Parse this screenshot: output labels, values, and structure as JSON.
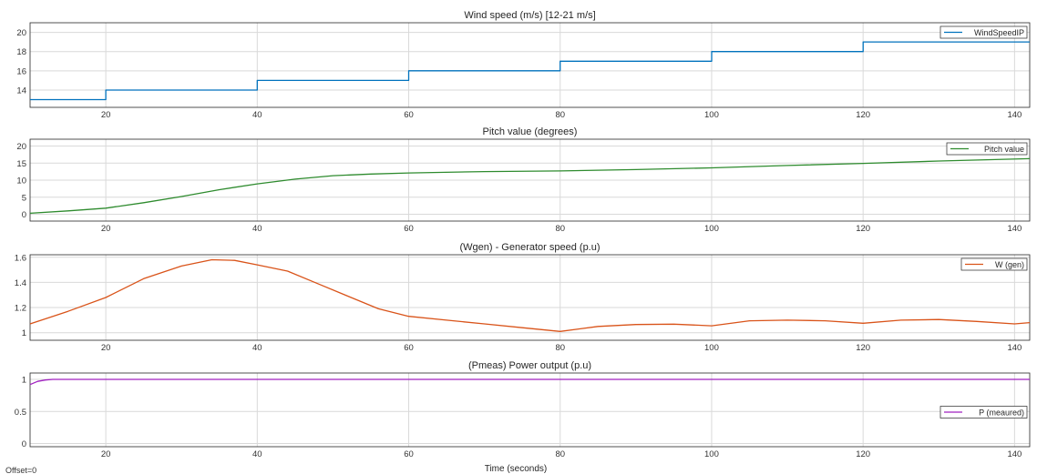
{
  "chart_data": [
    {
      "type": "line",
      "title": "Wind speed (m/s) [12-21 m/s]",
      "xlim": [
        10,
        142
      ],
      "ylim": [
        12.2,
        21
      ],
      "xticks": [
        20,
        40,
        60,
        80,
        100,
        120,
        140
      ],
      "yticks": [
        14,
        16,
        18,
        20
      ],
      "grid": true,
      "legend_position": "top-right",
      "series": [
        {
          "name": "WindSpeedIP",
          "color": "#0072BD",
          "step": true,
          "x": [
            10,
            20,
            40,
            60,
            80,
            100,
            120,
            142
          ],
          "y": [
            13,
            14,
            15,
            16,
            17,
            18,
            19,
            19
          ]
        }
      ]
    },
    {
      "type": "line",
      "title": "Pitch value (degrees)",
      "xlim": [
        10,
        142
      ],
      "ylim": [
        -2,
        22
      ],
      "xticks": [
        20,
        40,
        60,
        80,
        100,
        120,
        140
      ],
      "yticks": [
        0,
        5,
        10,
        15,
        20
      ],
      "grid": true,
      "legend_position": "top-right",
      "series": [
        {
          "name": "Pitch value",
          "color": "#2E8B2E",
          "x": [
            10,
            15,
            20,
            25,
            30,
            35,
            40,
            45,
            50,
            55,
            60,
            70,
            80,
            90,
            100,
            110,
            120,
            130,
            142
          ],
          "y": [
            0.3,
            1.0,
            1.8,
            3.4,
            5.2,
            7.2,
            8.9,
            10.3,
            11.3,
            11.8,
            12.1,
            12.5,
            12.7,
            13.1,
            13.6,
            14.3,
            14.9,
            15.6,
            16.3
          ]
        }
      ]
    },
    {
      "type": "line",
      "title": "(Wgen) - Generator speed (p.u)",
      "xlim": [
        10,
        142
      ],
      "ylim": [
        0.94,
        1.62
      ],
      "xticks": [
        20,
        40,
        60,
        80,
        100,
        120,
        140
      ],
      "yticks": [
        1,
        1.2,
        1.4,
        1.6
      ],
      "grid": true,
      "legend_position": "top-right",
      "series": [
        {
          "name": "W (gen)",
          "color": "#D95319",
          "x": [
            10,
            15,
            20,
            25,
            30,
            34,
            37,
            40,
            44,
            48,
            52,
            56,
            60,
            65,
            70,
            75,
            80,
            85,
            90,
            95,
            100,
            105,
            110,
            115,
            120,
            125,
            130,
            135,
            140,
            142
          ],
          "y": [
            1.07,
            1.17,
            1.28,
            1.43,
            1.53,
            1.58,
            1.575,
            1.54,
            1.49,
            1.39,
            1.29,
            1.19,
            1.13,
            1.1,
            1.07,
            1.04,
            1.01,
            1.05,
            1.065,
            1.068,
            1.055,
            1.095,
            1.1,
            1.095,
            1.075,
            1.1,
            1.105,
            1.09,
            1.07,
            1.08
          ]
        }
      ]
    },
    {
      "type": "line",
      "title": "(Pmeas) Power output (p.u)",
      "xlim": [
        10,
        142
      ],
      "ylim": [
        -0.05,
        1.1
      ],
      "xticks": [
        20,
        40,
        60,
        80,
        100,
        120,
        140
      ],
      "yticks": [
        0,
        0.5,
        1
      ],
      "grid": true,
      "legend_position": "right",
      "series": [
        {
          "name": "P (meaured)",
          "color": "#A020C0",
          "x": [
            10,
            11,
            12,
            13,
            15,
            20,
            60,
            100,
            142
          ],
          "y": [
            0.92,
            0.97,
            0.99,
            1.0,
            1.0,
            1.0,
            1.0,
            1.0,
            1.0
          ]
        }
      ]
    }
  ],
  "xlabel": "Time (seconds)",
  "offset_label": "Offset=0"
}
